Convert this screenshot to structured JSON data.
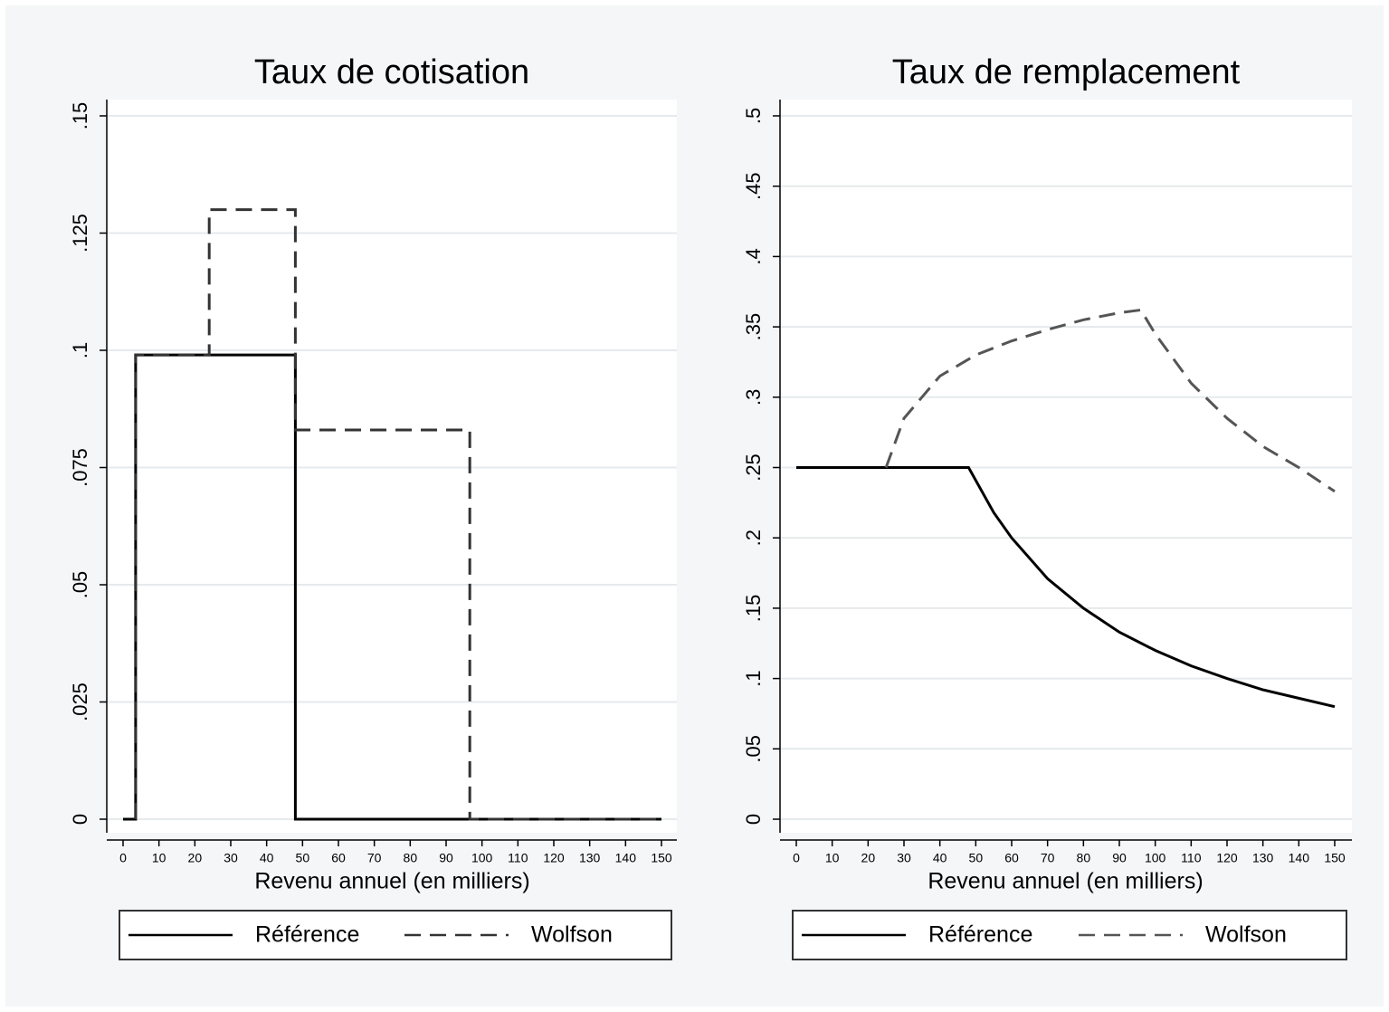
{
  "chart_data": [
    {
      "type": "line",
      "title": "Taux de cotisation",
      "x_label": "Revenu annuel (en milliers)",
      "xlim": [
        0,
        150
      ],
      "xticks": [
        0,
        10,
        20,
        30,
        40,
        50,
        60,
        70,
        80,
        90,
        100,
        110,
        120,
        130,
        140,
        150
      ],
      "ylim": [
        0,
        0.15
      ],
      "yticks": [
        0,
        {
          "value": 0.025,
          "label": ".025"
        },
        {
          "value": 0.05,
          "label": ".05"
        },
        {
          "value": 0.075,
          "label": ".075"
        },
        {
          "value": 0.1,
          "label": ".1"
        },
        {
          "value": 0.125,
          "label": ".125"
        },
        {
          "value": 0.15,
          "label": ".15"
        }
      ],
      "grid": true,
      "legend": "bottom",
      "series": [
        {
          "name": "Référence",
          "color": "#000000",
          "line_style": "solid",
          "x": [
            0,
            3.5,
            3.5,
            48,
            48,
            150
          ],
          "values": [
            0,
            0,
            0.099,
            0.099,
            0,
            0
          ]
        },
        {
          "name": "Wolfson",
          "color": "#333333",
          "line_style": "dashed",
          "x": [
            3.5,
            3.5,
            24,
            24,
            48,
            48,
            96.6,
            96.6,
            150
          ],
          "values": [
            0,
            0.099,
            0.099,
            0.13,
            0.13,
            0.083,
            0.083,
            0,
            0
          ]
        }
      ]
    },
    {
      "type": "line",
      "title": "Taux de remplacement",
      "x_label": "Revenu annuel (en milliers)",
      "xlim": [
        0,
        150
      ],
      "xticks": [
        0,
        10,
        20,
        30,
        40,
        50,
        60,
        70,
        80,
        90,
        100,
        110,
        120,
        130,
        140,
        150
      ],
      "ylim": [
        0,
        0.5
      ],
      "yticks": [
        0,
        {
          "value": 0.05,
          "label": ".05"
        },
        {
          "value": 0.1,
          "label": ".1"
        },
        {
          "value": 0.15,
          "label": ".15"
        },
        {
          "value": 0.2,
          "label": ".2"
        },
        {
          "value": 0.25,
          "label": ".25"
        },
        {
          "value": 0.3,
          "label": ".3"
        },
        {
          "value": 0.35,
          "label": ".35"
        },
        {
          "value": 0.4,
          "label": ".4"
        },
        {
          "value": 0.45,
          "label": ".45"
        },
        {
          "value": 0.5,
          "label": ".5"
        }
      ],
      "grid": true,
      "legend": "bottom",
      "series": [
        {
          "name": "Référence",
          "color": "#000000",
          "line_style": "solid",
          "x": [
            0,
            48,
            55,
            60,
            70,
            80,
            90,
            100,
            110,
            120,
            130,
            140,
            150
          ],
          "values": [
            0.25,
            0.25,
            0.218,
            0.2,
            0.171,
            0.15,
            0.133,
            0.12,
            0.109,
            0.1,
            0.092,
            0.086,
            0.08
          ]
        },
        {
          "name": "Wolfson",
          "color": "#555555",
          "line_style": "dashed",
          "x": [
            25,
            30,
            40,
            50,
            60,
            70,
            80,
            90,
            96,
            100,
            110,
            120,
            130,
            140,
            150
          ],
          "values": [
            0.25,
            0.285,
            0.315,
            0.33,
            0.34,
            0.348,
            0.355,
            0.36,
            0.362,
            0.345,
            0.31,
            0.285,
            0.265,
            0.25,
            0.233
          ]
        }
      ]
    }
  ]
}
